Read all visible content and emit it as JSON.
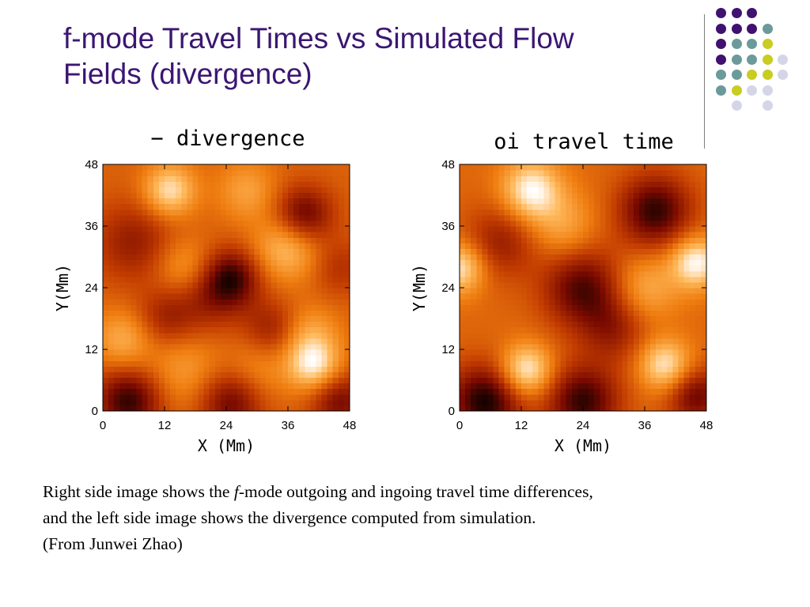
{
  "slide": {
    "title_lines": [
      "f-mode Travel Times vs Simulated Flow",
      "Fields (divergence)"
    ],
    "caption": {
      "line1_pre": "Right side image shows the ",
      "line1_italic": "f",
      "line1_post": "-mode outgoing and ingoing travel time differences,",
      "line2": "and the left side image shows the divergence computed from simulation.",
      "line3": "(From Junwei Zhao)"
    }
  },
  "colors": {
    "title": "#3B1672",
    "rule": "#7f7f7f",
    "dot_purple": "#401170",
    "dot_teal": "#6B9A9A",
    "dot_yellow": "#C9CC21",
    "dot_lavender": "#D5D5E8",
    "colormap": [
      "#000000",
      "#7a0a00",
      "#c03a00",
      "#ef7d10",
      "#ffb85a",
      "#ffffff"
    ]
  },
  "decor": {
    "dot_grid": [
      [
        "purple",
        "purple",
        "purple",
        null,
        null
      ],
      [
        "purple",
        "purple",
        "purple",
        "teal",
        null
      ],
      [
        "purple",
        "teal",
        "teal",
        "yellow",
        null
      ],
      [
        "purple",
        "teal",
        "teal",
        "yellow",
        "lavender"
      ],
      [
        "teal",
        "teal",
        "yellow",
        "yellow",
        "lavender"
      ],
      [
        "teal",
        "yellow",
        "lavender",
        "lavender",
        null
      ],
      [
        null,
        "lavender",
        null,
        "lavender",
        null
      ]
    ]
  },
  "chart_data": [
    {
      "type": "heatmap",
      "title": "− divergence",
      "xlabel": "X (Mm)",
      "ylabel": "Y(Mm)",
      "xlim": [
        0,
        48
      ],
      "ylim": [
        0,
        48
      ],
      "xticks": [
        "0",
        "12",
        "24",
        "36",
        "48"
      ],
      "yticks": [
        "0",
        "12",
        "24",
        "36",
        "48"
      ],
      "colormap": "heat",
      "features": [
        {
          "x": 13,
          "y": 43,
          "value": 1.0,
          "w": 3.5
        },
        {
          "x": 39,
          "y": 38,
          "value": -1.0,
          "w": 4.0
        },
        {
          "x": 36,
          "y": 32,
          "value": 0.8,
          "w": 4.5
        },
        {
          "x": 6,
          "y": 33,
          "value": -0.6,
          "w": 5.5
        },
        {
          "x": 25,
          "y": 26,
          "value": -1.0,
          "w": 4.0
        },
        {
          "x": 20,
          "y": 22,
          "value": -0.5,
          "w": 5.0
        },
        {
          "x": 16,
          "y": 28,
          "value": 0.55,
          "w": 4.0
        },
        {
          "x": 41,
          "y": 9,
          "value": 1.05,
          "w": 3.5
        },
        {
          "x": 40,
          "y": 15,
          "value": 0.55,
          "w": 4.0
        },
        {
          "x": 5,
          "y": 2,
          "value": -1.1,
          "w": 4.5
        },
        {
          "x": 25,
          "y": 2,
          "value": -0.9,
          "w": 4.5
        },
        {
          "x": 46,
          "y": 2,
          "value": -0.8,
          "w": 4.0
        },
        {
          "x": 4,
          "y": 14,
          "value": 0.6,
          "w": 4.0
        },
        {
          "x": 12,
          "y": 18,
          "value": -0.5,
          "w": 4.0
        },
        {
          "x": 33,
          "y": 16,
          "value": -0.6,
          "w": 4.0
        },
        {
          "x": 46,
          "y": 28,
          "value": -0.4,
          "w": 4.0
        },
        {
          "x": 28,
          "y": 43,
          "value": 0.5,
          "w": 4.0
        },
        {
          "x": 16,
          "y": 8,
          "value": 0.45,
          "w": 5.0
        },
        {
          "x": 30,
          "y": 8,
          "value": 0.4,
          "w": 4.5
        }
      ]
    },
    {
      "type": "heatmap",
      "title": "oi travel time",
      "xlabel": "X (Mm)",
      "ylabel": "Y(Mm)",
      "xlim": [
        0,
        48
      ],
      "ylim": [
        0,
        48
      ],
      "xticks": [
        "0",
        "12",
        "24",
        "36",
        "48"
      ],
      "yticks": [
        "0",
        "12",
        "24",
        "36",
        "48"
      ],
      "colormap": "heat",
      "features": [
        {
          "x": 14,
          "y": 43,
          "value": 1.0,
          "w": 4.0
        },
        {
          "x": 38,
          "y": 39,
          "value": -1.0,
          "w": 5.0
        },
        {
          "x": 46,
          "y": 29,
          "value": 1.0,
          "w": 3.5
        },
        {
          "x": 0,
          "y": 28,
          "value": 0.9,
          "w": 3.5
        },
        {
          "x": 24,
          "y": 24,
          "value": -0.9,
          "w": 5.5
        },
        {
          "x": 8,
          "y": 33,
          "value": -0.55,
          "w": 5.0
        },
        {
          "x": 13,
          "y": 8,
          "value": 1.0,
          "w": 3.5
        },
        {
          "x": 40,
          "y": 9,
          "value": 0.9,
          "w": 3.5
        },
        {
          "x": 5,
          "y": 2,
          "value": -1.1,
          "w": 5.0
        },
        {
          "x": 24,
          "y": 2,
          "value": -1.0,
          "w": 5.0
        },
        {
          "x": 46,
          "y": 3,
          "value": -0.8,
          "w": 4.0
        },
        {
          "x": 30,
          "y": 16,
          "value": -0.5,
          "w": 4.5
        },
        {
          "x": 36,
          "y": 24,
          "value": 0.5,
          "w": 4.5
        },
        {
          "x": 20,
          "y": 36,
          "value": 0.45,
          "w": 4.5
        }
      ]
    }
  ]
}
